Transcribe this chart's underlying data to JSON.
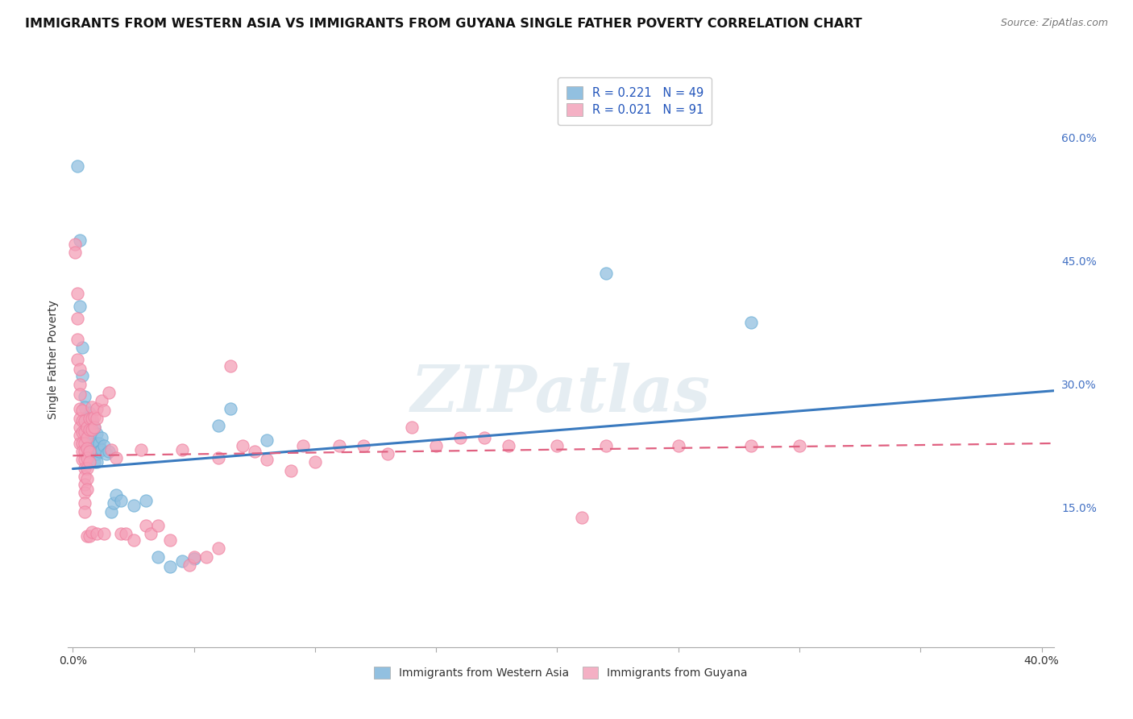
{
  "title": "IMMIGRANTS FROM WESTERN ASIA VS IMMIGRANTS FROM GUYANA SINGLE FATHER POVERTY CORRELATION CHART",
  "source": "Source: ZipAtlas.com",
  "ylabel": "Single Father Poverty",
  "right_yticks": [
    "15.0%",
    "30.0%",
    "45.0%",
    "60.0%"
  ],
  "right_ytick_vals": [
    0.15,
    0.3,
    0.45,
    0.6
  ],
  "xlim": [
    -0.002,
    0.405
  ],
  "ylim": [
    -0.02,
    0.68
  ],
  "watermark": "ZIPatlas",
  "blue_color": "#92C0E0",
  "pink_color": "#F4A0B8",
  "blue_scatter_edge": "#6aaed6",
  "pink_scatter_edge": "#f080a0",
  "blue_line_color": "#3a7abf",
  "pink_line_color": "#e06080",
  "blue_scatter": [
    [
      0.002,
      0.565
    ],
    [
      0.003,
      0.475
    ],
    [
      0.003,
      0.395
    ],
    [
      0.004,
      0.345
    ],
    [
      0.004,
      0.31
    ],
    [
      0.005,
      0.285
    ],
    [
      0.005,
      0.272
    ],
    [
      0.005,
      0.255
    ],
    [
      0.005,
      0.245
    ],
    [
      0.006,
      0.26
    ],
    [
      0.006,
      0.245
    ],
    [
      0.006,
      0.232
    ],
    [
      0.007,
      0.265
    ],
    [
      0.007,
      0.252
    ],
    [
      0.007,
      0.238
    ],
    [
      0.007,
      0.225
    ],
    [
      0.008,
      0.255
    ],
    [
      0.008,
      0.23
    ],
    [
      0.008,
      0.215
    ],
    [
      0.009,
      0.248
    ],
    [
      0.009,
      0.228
    ],
    [
      0.009,
      0.215
    ],
    [
      0.009,
      0.205
    ],
    [
      0.01,
      0.24
    ],
    [
      0.01,
      0.228
    ],
    [
      0.01,
      0.215
    ],
    [
      0.01,
      0.205
    ],
    [
      0.011,
      0.228
    ],
    [
      0.011,
      0.218
    ],
    [
      0.012,
      0.235
    ],
    [
      0.012,
      0.22
    ],
    [
      0.013,
      0.225
    ],
    [
      0.014,
      0.215
    ],
    [
      0.015,
      0.218
    ],
    [
      0.016,
      0.145
    ],
    [
      0.017,
      0.155
    ],
    [
      0.018,
      0.165
    ],
    [
      0.02,
      0.158
    ],
    [
      0.025,
      0.152
    ],
    [
      0.03,
      0.158
    ],
    [
      0.035,
      0.09
    ],
    [
      0.04,
      0.078
    ],
    [
      0.045,
      0.085
    ],
    [
      0.05,
      0.088
    ],
    [
      0.06,
      0.25
    ],
    [
      0.065,
      0.27
    ],
    [
      0.08,
      0.232
    ],
    [
      0.22,
      0.435
    ],
    [
      0.28,
      0.375
    ]
  ],
  "pink_scatter": [
    [
      0.001,
      0.47
    ],
    [
      0.001,
      0.46
    ],
    [
      0.002,
      0.41
    ],
    [
      0.002,
      0.38
    ],
    [
      0.002,
      0.355
    ],
    [
      0.002,
      0.33
    ],
    [
      0.003,
      0.318
    ],
    [
      0.003,
      0.3
    ],
    [
      0.003,
      0.288
    ],
    [
      0.003,
      0.27
    ],
    [
      0.003,
      0.258
    ],
    [
      0.003,
      0.248
    ],
    [
      0.003,
      0.238
    ],
    [
      0.003,
      0.228
    ],
    [
      0.004,
      0.268
    ],
    [
      0.004,
      0.255
    ],
    [
      0.004,
      0.242
    ],
    [
      0.004,
      0.228
    ],
    [
      0.004,
      0.218
    ],
    [
      0.004,
      0.208
    ],
    [
      0.005,
      0.255
    ],
    [
      0.005,
      0.242
    ],
    [
      0.005,
      0.228
    ],
    [
      0.005,
      0.218
    ],
    [
      0.005,
      0.208
    ],
    [
      0.005,
      0.198
    ],
    [
      0.005,
      0.188
    ],
    [
      0.005,
      0.178
    ],
    [
      0.005,
      0.168
    ],
    [
      0.005,
      0.155
    ],
    [
      0.005,
      0.145
    ],
    [
      0.006,
      0.248
    ],
    [
      0.006,
      0.235
    ],
    [
      0.006,
      0.222
    ],
    [
      0.006,
      0.21
    ],
    [
      0.006,
      0.198
    ],
    [
      0.006,
      0.185
    ],
    [
      0.006,
      0.172
    ],
    [
      0.006,
      0.115
    ],
    [
      0.007,
      0.258
    ],
    [
      0.007,
      0.245
    ],
    [
      0.007,
      0.218
    ],
    [
      0.007,
      0.205
    ],
    [
      0.007,
      0.115
    ],
    [
      0.008,
      0.272
    ],
    [
      0.008,
      0.258
    ],
    [
      0.008,
      0.245
    ],
    [
      0.008,
      0.12
    ],
    [
      0.009,
      0.26
    ],
    [
      0.009,
      0.248
    ],
    [
      0.01,
      0.27
    ],
    [
      0.01,
      0.258
    ],
    [
      0.01,
      0.118
    ],
    [
      0.012,
      0.28
    ],
    [
      0.013,
      0.268
    ],
    [
      0.013,
      0.118
    ],
    [
      0.015,
      0.29
    ],
    [
      0.016,
      0.22
    ],
    [
      0.018,
      0.21
    ],
    [
      0.02,
      0.118
    ],
    [
      0.022,
      0.118
    ],
    [
      0.025,
      0.11
    ],
    [
      0.028,
      0.22
    ],
    [
      0.03,
      0.128
    ],
    [
      0.032,
      0.118
    ],
    [
      0.035,
      0.128
    ],
    [
      0.04,
      0.11
    ],
    [
      0.045,
      0.22
    ],
    [
      0.048,
      0.08
    ],
    [
      0.05,
      0.09
    ],
    [
      0.055,
      0.09
    ],
    [
      0.06,
      0.21
    ],
    [
      0.06,
      0.1
    ],
    [
      0.065,
      0.322
    ],
    [
      0.07,
      0.225
    ],
    [
      0.075,
      0.218
    ],
    [
      0.08,
      0.208
    ],
    [
      0.09,
      0.195
    ],
    [
      0.095,
      0.225
    ],
    [
      0.1,
      0.205
    ],
    [
      0.11,
      0.225
    ],
    [
      0.12,
      0.225
    ],
    [
      0.13,
      0.215
    ],
    [
      0.14,
      0.248
    ],
    [
      0.15,
      0.225
    ],
    [
      0.16,
      0.235
    ],
    [
      0.17,
      0.235
    ],
    [
      0.18,
      0.225
    ],
    [
      0.2,
      0.225
    ],
    [
      0.21,
      0.138
    ],
    [
      0.22,
      0.225
    ],
    [
      0.25,
      0.225
    ],
    [
      0.28,
      0.225
    ],
    [
      0.3,
      0.225
    ]
  ],
  "blue_line_x": [
    0.0,
    0.405
  ],
  "blue_line_y": [
    0.197,
    0.292
  ],
  "pink_line_x": [
    0.0,
    0.405
  ],
  "pink_line_y": [
    0.213,
    0.228
  ],
  "grid_color": "#cccccc",
  "grid_yticks": [
    0.15,
    0.3,
    0.45,
    0.6
  ],
  "background_color": "#ffffff",
  "title_fontsize": 11.5,
  "axis_fontsize": 10,
  "tick_fontsize": 10,
  "legend_fontsize": 10.5,
  "right_tick_color": "#4472c4",
  "legend_blue_color": "#92C0E0",
  "legend_pink_color": "#F4B0C4"
}
